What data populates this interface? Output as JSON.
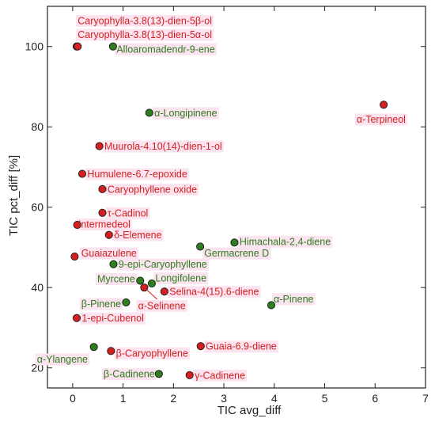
{
  "chart_data": {
    "type": "scatter",
    "title": "",
    "xlabel": "TIC avg_diff",
    "ylabel": "TIC pct_diff [%]",
    "xlim": [
      -0.5,
      7
    ],
    "ylim": [
      15,
      110
    ],
    "xticks": [
      0,
      1,
      2,
      3,
      4,
      5,
      6,
      7
    ],
    "yticks": [
      20,
      40,
      60,
      80,
      100
    ],
    "grid": false,
    "legend": "none",
    "colors": {
      "red": "#d42020",
      "green": "#2e7d1e",
      "label_bg": "#fbe3ef"
    },
    "points": [
      {
        "label": "Caryophylla-3.8(13)-dien-5β-ol",
        "x": 0.08,
        "y": 100,
        "color": "red",
        "ldx": 0.02,
        "ldy": 6.5,
        "anchor": "start"
      },
      {
        "label": "Caryophylla-3.8(13)-dien-5α-ol",
        "x": 0.1,
        "y": 100,
        "color": "red",
        "ldx": 0.0,
        "ldy": 3.0,
        "anchor": "start"
      },
      {
        "label": "Alloaromadendr-9-ene",
        "x": 0.8,
        "y": 100,
        "color": "green",
        "ldx": 0.07,
        "ldy": -0.6,
        "anchor": "start"
      },
      {
        "label": "α-Longipinene",
        "x": 1.52,
        "y": 83.5,
        "color": "green",
        "ldx": 0.1,
        "ldy": 0,
        "anchor": "start"
      },
      {
        "label": "α-Terpineol",
        "x": 6.17,
        "y": 85.5,
        "color": "red",
        "ldx": -0.05,
        "ldy": -3.6,
        "anchor": "middle"
      },
      {
        "label": "Muurola-4.10(14)-dien-1-ol",
        "x": 0.53,
        "y": 75.2,
        "color": "red",
        "ldx": 0.1,
        "ldy": 0,
        "anchor": "start"
      },
      {
        "label": "Humulene-6.7-epoxide",
        "x": 0.19,
        "y": 68.3,
        "color": "red",
        "ldx": 0.1,
        "ldy": 0,
        "anchor": "start"
      },
      {
        "label": "Caryophyllene oxide",
        "x": 0.59,
        "y": 64.5,
        "color": "red",
        "ldx": 0.1,
        "ldy": 0,
        "anchor": "start"
      },
      {
        "label": "τ-Cadinol",
        "x": 0.59,
        "y": 58.6,
        "color": "red",
        "ldx": 0.1,
        "ldy": 0,
        "anchor": "start"
      },
      {
        "label": "Intermedeol",
        "x": 0.09,
        "y": 55.6,
        "color": "red",
        "ldx": 0.02,
        "ldy": 0.2,
        "anchor": "start"
      },
      {
        "label": "δ-Elemene",
        "x": 0.72,
        "y": 53.1,
        "color": "red",
        "ldx": 0.1,
        "ldy": 0,
        "anchor": "start"
      },
      {
        "label": "Himachala-2,4-diene",
        "x": 3.21,
        "y": 51.2,
        "color": "green",
        "ldx": 0.1,
        "ldy": 0.3,
        "anchor": "start"
      },
      {
        "label": "Germacrene D",
        "x": 2.53,
        "y": 50.2,
        "color": "green",
        "ldx": 0.08,
        "ldy": -1.6,
        "anchor": "start"
      },
      {
        "label": "Guaiazulene",
        "x": 0.04,
        "y": 47.7,
        "color": "red",
        "ldx": 0.13,
        "ldy": 0.9,
        "anchor": "start"
      },
      {
        "label": "9-epi-Caryophyllene",
        "x": 0.81,
        "y": 45.8,
        "color": "green",
        "ldx": 0.1,
        "ldy": 0,
        "anchor": "start"
      },
      {
        "label": "Myrcene",
        "x": 1.34,
        "y": 41.7,
        "color": "green",
        "ldx": -0.1,
        "ldy": 0.5,
        "anchor": "end"
      },
      {
        "label": "Longifolene",
        "x": 1.57,
        "y": 41,
        "color": "green",
        "ldx": 0.07,
        "ldy": 1.4,
        "anchor": "start"
      },
      {
        "label": "Selina-4(15).6-diene",
        "x": 1.82,
        "y": 39,
        "color": "red",
        "ldx": 0.1,
        "ldy": 0,
        "anchor": "start"
      },
      {
        "label": "α-Selinene",
        "x": 1.42,
        "y": 40,
        "color": "red",
        "ldx": 0.35,
        "ldy": -4.5,
        "anchor": "middle",
        "leader": true
      },
      {
        "label": "α-Pinene",
        "x": 3.94,
        "y": 35.6,
        "color": "green",
        "ldx": 0.05,
        "ldy": 1.6,
        "anchor": "start"
      },
      {
        "label": "β-Pinene",
        "x": 1.06,
        "y": 36.3,
        "color": "green",
        "ldx": -0.1,
        "ldy": -0.3,
        "anchor": "end"
      },
      {
        "label": "1-epi-Cubenol",
        "x": 0.08,
        "y": 32.4,
        "color": "red",
        "ldx": 0.1,
        "ldy": 0,
        "anchor": "start"
      },
      {
        "label": "Guaia-6.9-diene",
        "x": 2.54,
        "y": 25.4,
        "color": "red",
        "ldx": 0.1,
        "ldy": 0,
        "anchor": "start"
      },
      {
        "label": "α-Ylangene",
        "x": 0.42,
        "y": 25.2,
        "color": "green",
        "ldx": -0.12,
        "ldy": -3.0,
        "anchor": "end"
      },
      {
        "label": "β-Caryophyllene",
        "x": 0.76,
        "y": 24.2,
        "color": "red",
        "ldx": 0.1,
        "ldy": -0.5,
        "anchor": "start"
      },
      {
        "label": "β-Cadinene",
        "x": 1.71,
        "y": 18.5,
        "color": "green",
        "ldx": -0.08,
        "ldy": 0,
        "anchor": "end"
      },
      {
        "label": "γ-Cadinene",
        "x": 2.32,
        "y": 18.2,
        "color": "red",
        "ldx": 0.1,
        "ldy": 0,
        "anchor": "start"
      }
    ]
  }
}
